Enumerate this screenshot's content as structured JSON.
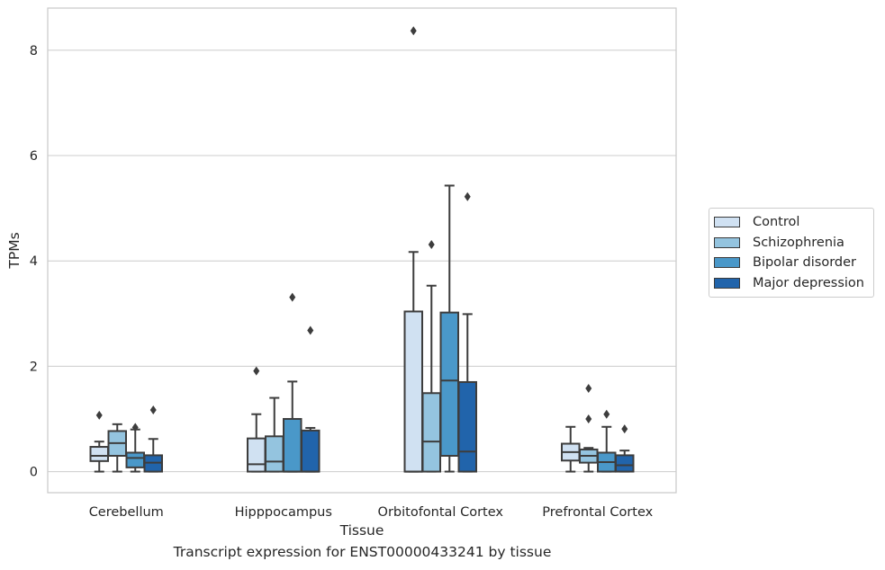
{
  "caption": "Transcript expression for ENST00000433241 by tissue",
  "chart_data": {
    "type": "boxplot",
    "xlabel": "Tissue",
    "ylabel": "TPMs",
    "ylim": [
      -0.4,
      8.8
    ],
    "yticks": [
      0,
      2,
      4,
      6,
      8
    ],
    "grid": "horizontal",
    "legend_position": "right",
    "categories": [
      "Cerebellum",
      "Hipppocampus",
      "Orbitofontal Cortex",
      "Prefrontal Cortex"
    ],
    "series": [
      {
        "name": "Control",
        "color": "#d0e1f2",
        "boxes": [
          {
            "whislo": 0.0,
            "q1": 0.2,
            "med": 0.3,
            "q3": 0.47,
            "whishi": 0.57,
            "fliers": [
              1.07
            ]
          },
          {
            "whislo": 0.0,
            "q1": 0.0,
            "med": 0.14,
            "q3": 0.63,
            "whishi": 1.09,
            "fliers": [
              1.91
            ]
          },
          {
            "whislo": 0.0,
            "q1": 0.0,
            "med": 0.0,
            "q3": 3.04,
            "whishi": 4.17,
            "fliers": [
              8.37
            ]
          },
          {
            "whislo": 0.0,
            "q1": 0.21,
            "med": 0.37,
            "q3": 0.53,
            "whishi": 0.85,
            "fliers": []
          }
        ]
      },
      {
        "name": "Schizophrenia",
        "color": "#94c4df",
        "boxes": [
          {
            "whislo": 0.0,
            "q1": 0.3,
            "med": 0.54,
            "q3": 0.77,
            "whishi": 0.9,
            "fliers": []
          },
          {
            "whislo": 0.0,
            "q1": 0.0,
            "med": 0.19,
            "q3": 0.67,
            "whishi": 1.4,
            "fliers": []
          },
          {
            "whislo": 0.0,
            "q1": 0.0,
            "med": 0.57,
            "q3": 1.49,
            "whishi": 3.53,
            "fliers": [
              4.31
            ]
          },
          {
            "whislo": 0.0,
            "q1": 0.17,
            "med": 0.3,
            "q3": 0.42,
            "whishi": 0.45,
            "fliers": [
              1.0,
              1.58
            ]
          }
        ]
      },
      {
        "name": "Bipolar disorder",
        "color": "#4a98c9",
        "boxes": [
          {
            "whislo": 0.0,
            "q1": 0.08,
            "med": 0.26,
            "q3": 0.36,
            "whishi": 0.8,
            "fliers": [
              0.84
            ]
          },
          {
            "whislo": 0.0,
            "q1": 0.0,
            "med": 0.0,
            "q3": 1.0,
            "whishi": 1.71,
            "fliers": [
              3.31
            ]
          },
          {
            "whislo": 0.0,
            "q1": 0.3,
            "med": 1.73,
            "q3": 3.02,
            "whishi": 5.43,
            "fliers": []
          },
          {
            "whislo": 0.0,
            "q1": 0.0,
            "med": 0.18,
            "q3": 0.36,
            "whishi": 0.85,
            "fliers": [
              1.09
            ]
          }
        ]
      },
      {
        "name": "Major depression",
        "color": "#2164ab",
        "boxes": [
          {
            "whislo": 0.0,
            "q1": 0.0,
            "med": 0.17,
            "q3": 0.31,
            "whishi": 0.62,
            "fliers": [
              1.17
            ]
          },
          {
            "whislo": 0.0,
            "q1": 0.0,
            "med": 0.0,
            "q3": 0.78,
            "whishi": 0.83,
            "fliers": [
              2.68
            ]
          },
          {
            "whislo": 0.0,
            "q1": 0.0,
            "med": 0.38,
            "q3": 1.7,
            "whishi": 2.99,
            "fliers": [
              5.22
            ]
          },
          {
            "whislo": 0.0,
            "q1": 0.0,
            "med": 0.12,
            "q3": 0.31,
            "whishi": 0.4,
            "fliers": [
              0.81
            ]
          }
        ]
      }
    ]
  }
}
